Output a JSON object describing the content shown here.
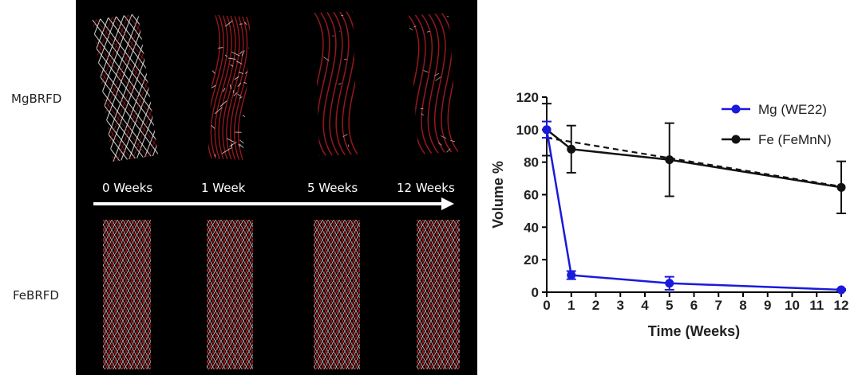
{
  "rows": {
    "top_label": "MgBRFD",
    "bottom_label": "FeBRFD"
  },
  "timeline": {
    "labels": [
      "0 Weeks",
      "1 Week",
      "5 Weeks",
      "12 Weeks"
    ]
  },
  "colors": {
    "mg": "#1a1adc",
    "fe": "#111111",
    "panel_bg": "#000000",
    "strut_red": "#b01c22",
    "strut_white": "#e8e8e8"
  },
  "chart_data": {
    "type": "line",
    "xlabel": "Time (Weeks)",
    "ylabel": "Volume %",
    "xlim": [
      0,
      12
    ],
    "ylim": [
      0,
      120
    ],
    "xticks": [
      0,
      1,
      2,
      3,
      4,
      5,
      6,
      7,
      8,
      9,
      10,
      11,
      12
    ],
    "yticks": [
      0,
      20,
      40,
      60,
      80,
      100,
      120
    ],
    "legend_position": "top-right",
    "series": [
      {
        "name": "Mg (WE22)",
        "color": "#1a1adc",
        "x": [
          0,
          1,
          5,
          12
        ],
        "y": [
          100,
          10.5,
          5.5,
          1.5
        ],
        "err": [
          5,
          2.5,
          4,
          0.5
        ]
      },
      {
        "name": "Fe (FeMnN)",
        "color": "#111111",
        "x": [
          0,
          1,
          5,
          12
        ],
        "y": [
          100,
          88,
          81.5,
          64.5
        ],
        "err": [
          16,
          14.5,
          22.5,
          16
        ]
      }
    ],
    "fit_line": {
      "color": "#111111",
      "dashed": true,
      "x": [
        0,
        12
      ],
      "y": [
        95,
        65
      ]
    }
  }
}
